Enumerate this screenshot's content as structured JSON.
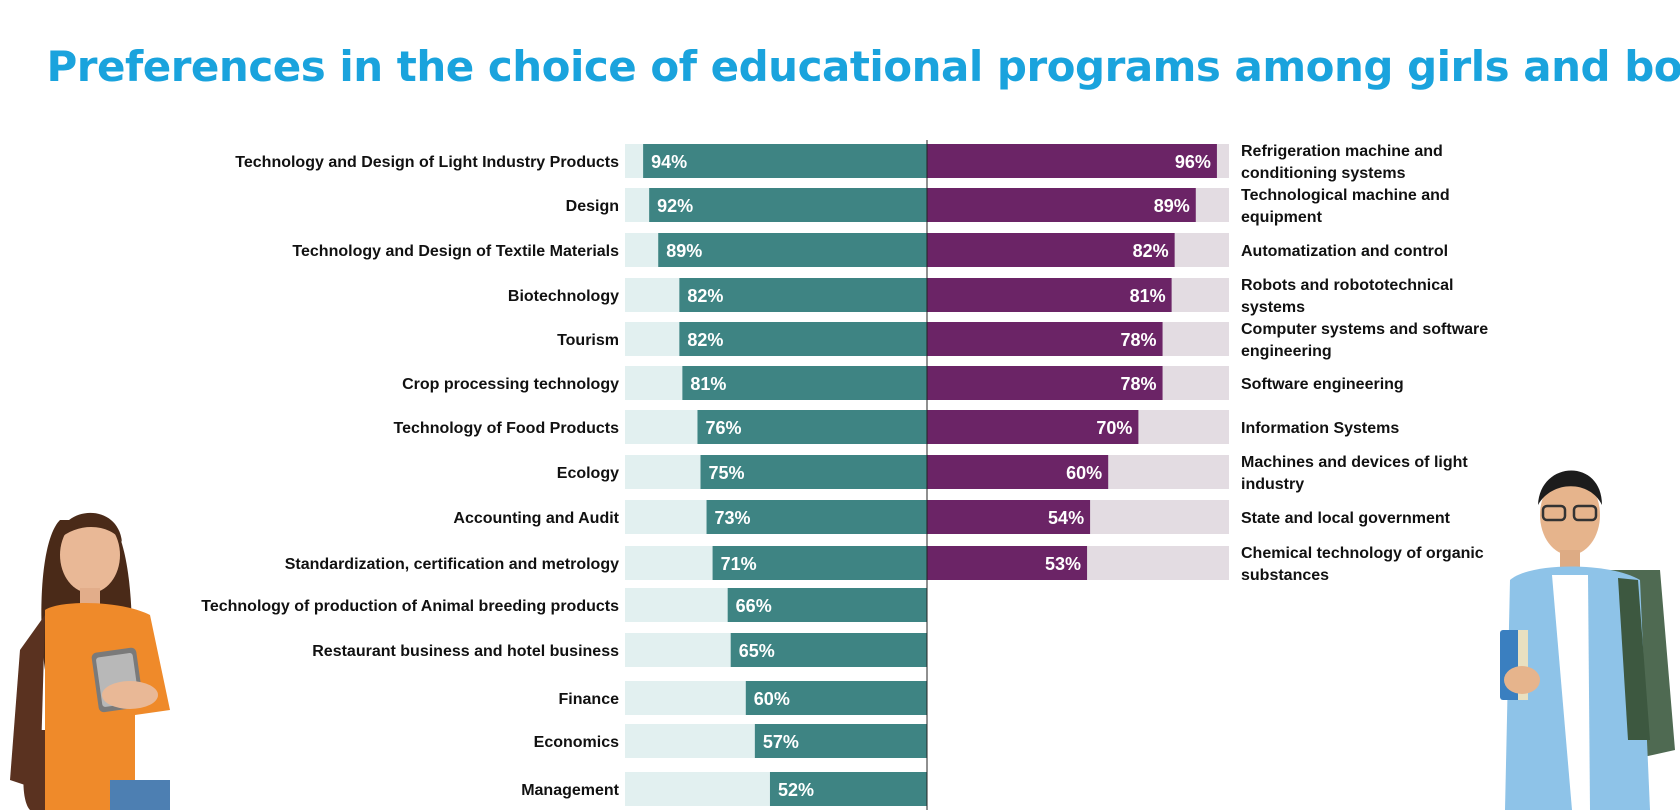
{
  "title": "Preferences in the choice of educational programs among girls and boys",
  "colors": {
    "title": "#1aa3dd",
    "girls_bar": "#3e8483",
    "girls_track": "#e2f0f0",
    "boys_bar": "#6b2466",
    "boys_track": "#e3dce2",
    "axis": "#222222"
  },
  "chart_data": {
    "type": "bar",
    "orientation": "horizontal",
    "title": "Preferences in the choice of educational programs among girls and boys",
    "xlim": [
      0,
      100
    ],
    "unit": "%",
    "groups": [
      {
        "side": "left",
        "categories": [
          "Technology and Design of Light Industry Products",
          "Design",
          "Technology and Design of Textile Materials",
          "Biotechnology",
          "Tourism",
          "Crop processing technology",
          "Technology of Food Products",
          "Ecology",
          "Accounting and Audit",
          "Standardization, certification and metrology",
          "Technology of production of Animal breeding products",
          "Restaurant business and hotel business",
          "Finance",
          "Economics",
          "Management"
        ],
        "values": [
          94,
          92,
          89,
          82,
          82,
          81,
          76,
          75,
          73,
          71,
          66,
          65,
          60,
          57,
          52
        ],
        "labels": [
          "94%",
          "92%",
          "89%",
          "82%",
          "82%",
          "81%",
          "76%",
          "75%",
          "73%",
          "71%",
          "66%",
          "65%",
          "60%",
          "57%",
          "52%"
        ]
      },
      {
        "side": "right",
        "categories": [
          "Refrigeration machine and conditioning systems",
          "Technological machine and equipment",
          "Automatization and  control",
          "Robots and robototechnical systems",
          "Computer systems and software engineering",
          "Software engineering",
          "Information Systems",
          "Machines and devices of light industry",
          "State and local government",
          "Chemical technology of organic substances"
        ],
        "values": [
          96,
          89,
          82,
          81,
          78,
          78,
          70,
          60,
          54,
          53
        ],
        "labels": [
          "96%",
          "89%",
          "82%",
          "81%",
          "78%",
          "78%",
          "70%",
          "60%",
          "54%",
          "53%"
        ]
      }
    ]
  },
  "illustrations": {
    "girl": "girl-with-backpack-and-tablet",
    "boy": "boy-with-backpack-and-books"
  }
}
